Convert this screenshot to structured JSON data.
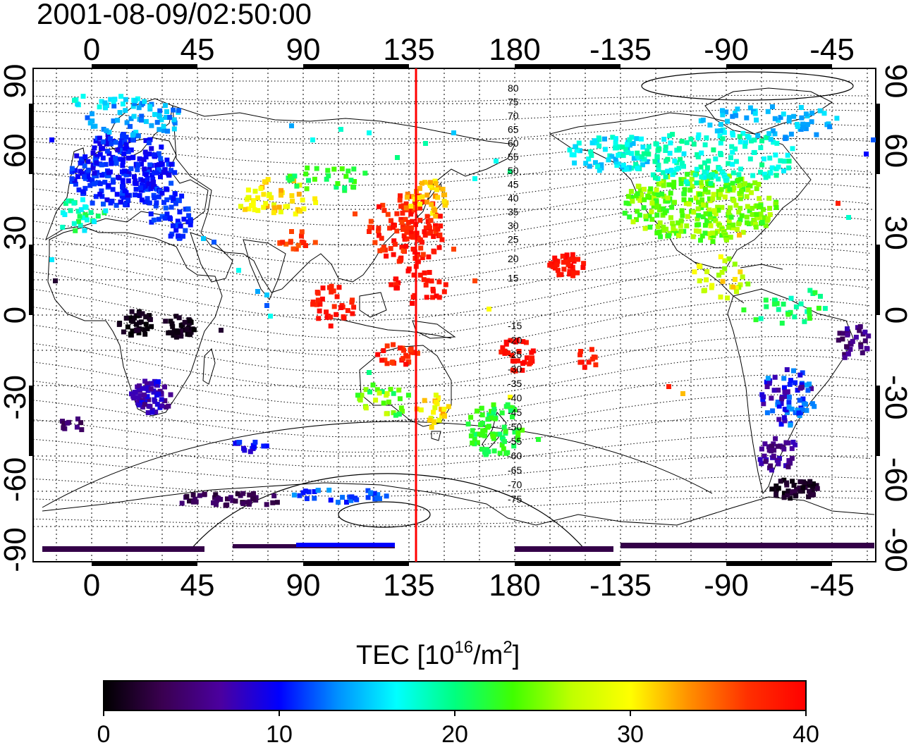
{
  "timestamp": "2001-08-09/02:50:00",
  "map": {
    "x_ticks": [
      "0",
      "45",
      "90",
      "135",
      "180",
      "-135",
      "-90",
      "-45"
    ],
    "y_ticks": [
      "90",
      "60",
      "30",
      "0",
      "-30",
      "-60",
      "-90"
    ],
    "marker_longitude": 138,
    "marker_color": "#ff0000",
    "contour_labels_north": [
      "80",
      "75",
      "70",
      "65",
      "60",
      "55",
      "50",
      "45",
      "40",
      "35",
      "30",
      "25",
      "20",
      "15"
    ],
    "contour_labels_south": [
      "-15",
      "-20",
      "-25",
      "-30",
      "-35",
      "-40",
      "-45",
      "-50",
      "-55",
      "-60",
      "-65",
      "-70",
      "-75"
    ]
  },
  "colorbar": {
    "title_main": "TEC  [10",
    "title_exp": "16",
    "title_mid": "/m",
    "title_exp2": "2",
    "title_end": "]",
    "ticks": [
      "0",
      "10",
      "20",
      "30",
      "40"
    ],
    "min": 0,
    "max": 40,
    "colors": [
      "#000000",
      "#3a0050",
      "#4b00a0",
      "#0000ff",
      "#0090ff",
      "#00ffff",
      "#00ff80",
      "#40ff00",
      "#c0ff00",
      "#ffff00",
      "#ff9000",
      "#ff3000",
      "#ff0000"
    ]
  }
}
